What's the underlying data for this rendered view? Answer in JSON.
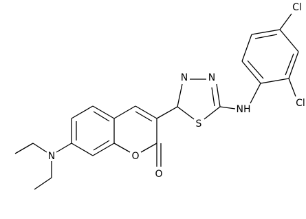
{
  "atoms": [
    {
      "label": "Cl"
    },
    {
      "label": "Cl"
    },
    {
      "label": "NH"
    },
    {
      "label": "N"
    },
    {
      "label": "N"
    },
    {
      "label": "S"
    },
    {
      "label": "O"
    },
    {
      "label": "O"
    },
    {
      "label": "N"
    }
  ]
}
